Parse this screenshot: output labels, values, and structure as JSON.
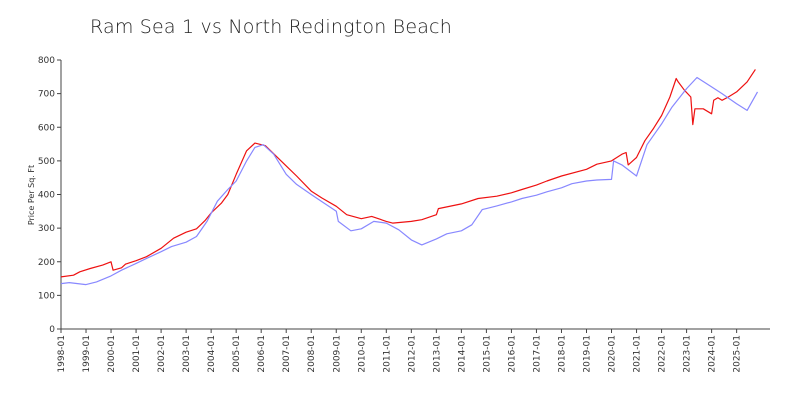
{
  "chart_data": {
    "type": "line",
    "title": "Ram Sea 1 vs North Redington Beach",
    "ylabel": "Price Per Sq. Ft",
    "xlabel": "",
    "ylim": [
      0,
      800
    ],
    "yticks": [
      0,
      100,
      200,
      300,
      400,
      500,
      600,
      700,
      800
    ],
    "xlim": [
      "1998-01",
      "2026-05"
    ],
    "xticks": [
      "1998-01",
      "1999-01",
      "2000-01",
      "2001-01",
      "2002-01",
      "2003-01",
      "2004-01",
      "2005-01",
      "2006-01",
      "2007-01",
      "2008-01",
      "2009-01",
      "2010-01",
      "2011-01",
      "2012-01",
      "2013-01",
      "2014-01",
      "2015-01",
      "2016-01",
      "2017-01",
      "2018-01",
      "2019-01",
      "2020-01",
      "2021-01",
      "2022-01",
      "2023-01",
      "2024-01",
      "2025-01"
    ],
    "grid": false,
    "legend": "none",
    "series": [
      {
        "color": "#ee1111",
        "points": [
          [
            "1998-01",
            155
          ],
          [
            "1998-07",
            160
          ],
          [
            "1998-10",
            170
          ],
          [
            "1999-03",
            180
          ],
          [
            "1999-09",
            190
          ],
          [
            "2000-01",
            200
          ],
          [
            "2000-02",
            175
          ],
          [
            "2000-06",
            182
          ],
          [
            "2000-08",
            193
          ],
          [
            "2001-01",
            203
          ],
          [
            "2001-06",
            215
          ],
          [
            "2002-01",
            240
          ],
          [
            "2002-07",
            270
          ],
          [
            "2003-01",
            288
          ],
          [
            "2003-06",
            298
          ],
          [
            "2003-10",
            322
          ],
          [
            "2004-01",
            345
          ],
          [
            "2004-06",
            375
          ],
          [
            "2004-09",
            400
          ],
          [
            "2005-01",
            460
          ],
          [
            "2005-06",
            530
          ],
          [
            "2005-10",
            553
          ],
          [
            "2006-03",
            545
          ],
          [
            "2006-08",
            515
          ],
          [
            "2007-01",
            485
          ],
          [
            "2007-06",
            455
          ],
          [
            "2008-01",
            410
          ],
          [
            "2008-06",
            390
          ],
          [
            "2009-01",
            365
          ],
          [
            "2009-06",
            340
          ],
          [
            "2010-01",
            328
          ],
          [
            "2010-06",
            335
          ],
          [
            "2011-01",
            320
          ],
          [
            "2011-04",
            315
          ],
          [
            "2012-01",
            320
          ],
          [
            "2012-06",
            325
          ],
          [
            "2013-01",
            340
          ],
          [
            "2013-02",
            358
          ],
          [
            "2014-01",
            372
          ],
          [
            "2014-09",
            388
          ],
          [
            "2015-06",
            395
          ],
          [
            "2016-01",
            405
          ],
          [
            "2016-06",
            415
          ],
          [
            "2017-01",
            428
          ],
          [
            "2017-06",
            440
          ],
          [
            "2018-01",
            455
          ],
          [
            "2019-01",
            475
          ],
          [
            "2019-06",
            490
          ],
          [
            "2020-01",
            500
          ],
          [
            "2020-06",
            520
          ],
          [
            "2020-08",
            525
          ],
          [
            "2020-09",
            488
          ],
          [
            "2021-01",
            510
          ],
          [
            "2021-05",
            560
          ],
          [
            "2021-09",
            595
          ],
          [
            "2022-01",
            635
          ],
          [
            "2022-05",
            690
          ],
          [
            "2022-08",
            745
          ],
          [
            "2022-09",
            735
          ],
          [
            "2022-12",
            710
          ],
          [
            "2023-03",
            690
          ],
          [
            "2023-04",
            608
          ],
          [
            "2023-05",
            655
          ],
          [
            "2023-09",
            655
          ],
          [
            "2024-01",
            640
          ],
          [
            "2024-02",
            680
          ],
          [
            "2024-04",
            688
          ],
          [
            "2024-06",
            680
          ],
          [
            "2024-09",
            690
          ],
          [
            "2025-01",
            705
          ],
          [
            "2025-06",
            735
          ],
          [
            "2025-10",
            772
          ]
        ]
      },
      {
        "color": "#8888ff",
        "points": [
          [
            "1998-01",
            135
          ],
          [
            "1998-05",
            138
          ],
          [
            "1999-01",
            132
          ],
          [
            "1999-06",
            140
          ],
          [
            "2000-01",
            158
          ],
          [
            "2000-06",
            175
          ],
          [
            "2001-01",
            195
          ],
          [
            "2001-06",
            210
          ],
          [
            "2002-01",
            230
          ],
          [
            "2002-06",
            245
          ],
          [
            "2003-01",
            258
          ],
          [
            "2003-06",
            275
          ],
          [
            "2003-11",
            320
          ],
          [
            "2004-04",
            380
          ],
          [
            "2004-09",
            415
          ],
          [
            "2005-01",
            440
          ],
          [
            "2005-06",
            500
          ],
          [
            "2005-10",
            540
          ],
          [
            "2006-02",
            548
          ],
          [
            "2006-07",
            520
          ],
          [
            "2007-01",
            460
          ],
          [
            "2007-06",
            430
          ],
          [
            "2008-01",
            400
          ],
          [
            "2008-07",
            375
          ],
          [
            "2009-01",
            350
          ],
          [
            "2009-02",
            320
          ],
          [
            "2009-08",
            292
          ],
          [
            "2010-01",
            298
          ],
          [
            "2010-07",
            320
          ],
          [
            "2011-01",
            315
          ],
          [
            "2011-07",
            295
          ],
          [
            "2012-01",
            265
          ],
          [
            "2012-06",
            250
          ],
          [
            "2013-01",
            268
          ],
          [
            "2013-06",
            283
          ],
          [
            "2014-01",
            292
          ],
          [
            "2014-06",
            310
          ],
          [
            "2014-11",
            355
          ],
          [
            "2015-01",
            358
          ],
          [
            "2015-06",
            366
          ],
          [
            "2016-01",
            378
          ],
          [
            "2016-06",
            388
          ],
          [
            "2017-01",
            398
          ],
          [
            "2017-06",
            408
          ],
          [
            "2018-01",
            420
          ],
          [
            "2018-06",
            432
          ],
          [
            "2019-01",
            440
          ],
          [
            "2019-06",
            443
          ],
          [
            "2020-01",
            445
          ],
          [
            "2020-02",
            500
          ],
          [
            "2020-06",
            488
          ],
          [
            "2021-01",
            455
          ],
          [
            "2021-06",
            548
          ],
          [
            "2022-01",
            610
          ],
          [
            "2022-06",
            660
          ],
          [
            "2023-01",
            715
          ],
          [
            "2023-06",
            748
          ],
          [
            "2024-01",
            720
          ],
          [
            "2024-06",
            700
          ],
          [
            "2025-01",
            670
          ],
          [
            "2025-06",
            650
          ],
          [
            "2025-11",
            705
          ]
        ]
      }
    ]
  }
}
